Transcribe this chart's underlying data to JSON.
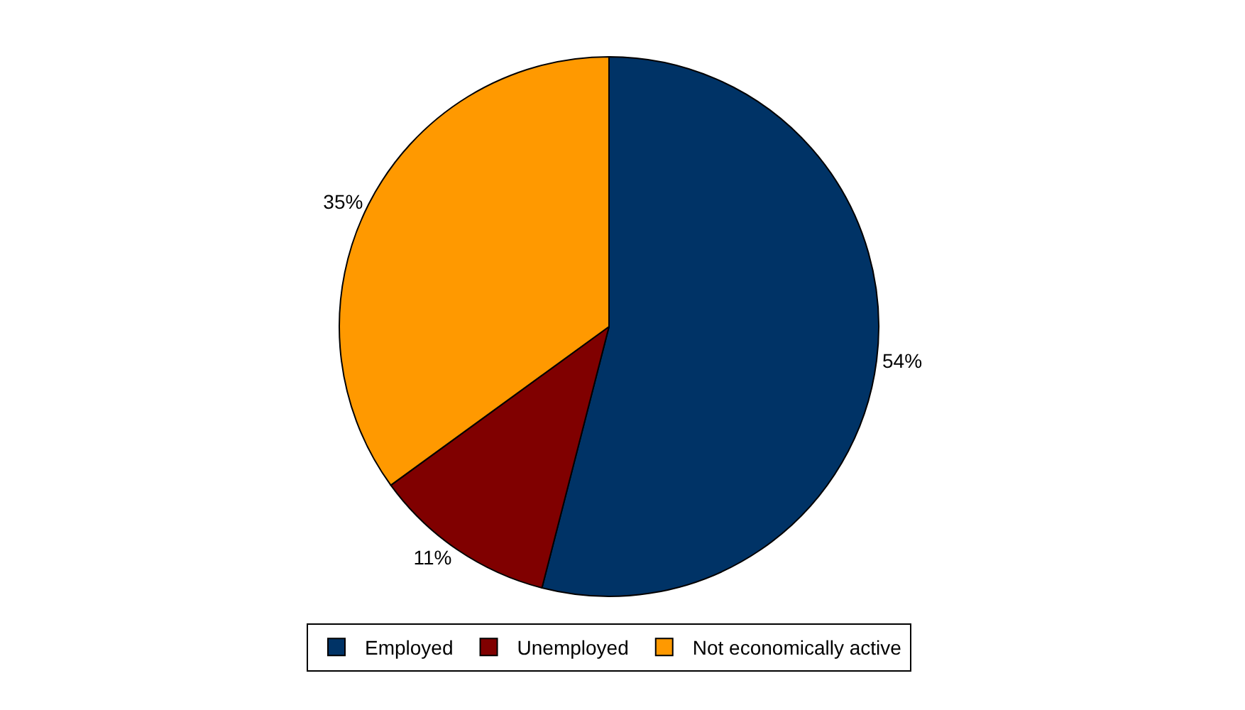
{
  "chart_data": {
    "type": "pie",
    "categories": [
      "Employed",
      "Unemployed",
      "Not economically active"
    ],
    "values": [
      54,
      11,
      35
    ],
    "colors": [
      "#003366",
      "#800000",
      "#ff9900"
    ],
    "value_labels": [
      "54%",
      "11%",
      "35%"
    ],
    "legend": "bottom"
  }
}
